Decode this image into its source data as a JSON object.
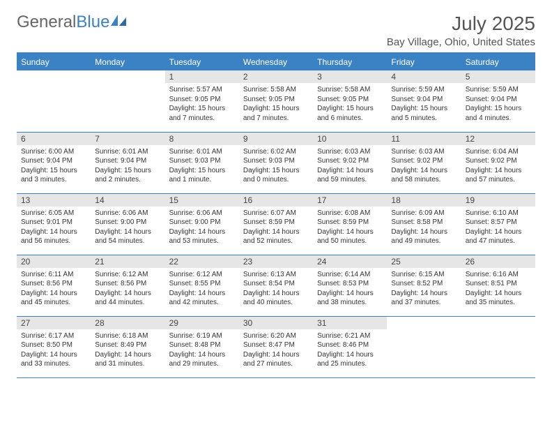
{
  "logo": {
    "text1": "General",
    "text2": "Blue"
  },
  "title": "July 2025",
  "location": "Bay Village, Ohio, United States",
  "colors": {
    "accent": "#3b82c4",
    "daynum_bg": "#e6e6e6",
    "text": "#333333",
    "header_text": "#555555"
  },
  "weekdays": [
    "Sunday",
    "Monday",
    "Tuesday",
    "Wednesday",
    "Thursday",
    "Friday",
    "Saturday"
  ],
  "weeks": [
    [
      {
        "empty": true
      },
      {
        "empty": true
      },
      {
        "day": "1",
        "sunrise": "Sunrise: 5:57 AM",
        "sunset": "Sunset: 9:05 PM",
        "daylight": "Daylight: 15 hours and 7 minutes."
      },
      {
        "day": "2",
        "sunrise": "Sunrise: 5:58 AM",
        "sunset": "Sunset: 9:05 PM",
        "daylight": "Daylight: 15 hours and 7 minutes."
      },
      {
        "day": "3",
        "sunrise": "Sunrise: 5:58 AM",
        "sunset": "Sunset: 9:05 PM",
        "daylight": "Daylight: 15 hours and 6 minutes."
      },
      {
        "day": "4",
        "sunrise": "Sunrise: 5:59 AM",
        "sunset": "Sunset: 9:04 PM",
        "daylight": "Daylight: 15 hours and 5 minutes."
      },
      {
        "day": "5",
        "sunrise": "Sunrise: 5:59 AM",
        "sunset": "Sunset: 9:04 PM",
        "daylight": "Daylight: 15 hours and 4 minutes."
      }
    ],
    [
      {
        "day": "6",
        "sunrise": "Sunrise: 6:00 AM",
        "sunset": "Sunset: 9:04 PM",
        "daylight": "Daylight: 15 hours and 3 minutes."
      },
      {
        "day": "7",
        "sunrise": "Sunrise: 6:01 AM",
        "sunset": "Sunset: 9:04 PM",
        "daylight": "Daylight: 15 hours and 2 minutes."
      },
      {
        "day": "8",
        "sunrise": "Sunrise: 6:01 AM",
        "sunset": "Sunset: 9:03 PM",
        "daylight": "Daylight: 15 hours and 1 minute."
      },
      {
        "day": "9",
        "sunrise": "Sunrise: 6:02 AM",
        "sunset": "Sunset: 9:03 PM",
        "daylight": "Daylight: 15 hours and 0 minutes."
      },
      {
        "day": "10",
        "sunrise": "Sunrise: 6:03 AM",
        "sunset": "Sunset: 9:02 PM",
        "daylight": "Daylight: 14 hours and 59 minutes."
      },
      {
        "day": "11",
        "sunrise": "Sunrise: 6:03 AM",
        "sunset": "Sunset: 9:02 PM",
        "daylight": "Daylight: 14 hours and 58 minutes."
      },
      {
        "day": "12",
        "sunrise": "Sunrise: 6:04 AM",
        "sunset": "Sunset: 9:02 PM",
        "daylight": "Daylight: 14 hours and 57 minutes."
      }
    ],
    [
      {
        "day": "13",
        "sunrise": "Sunrise: 6:05 AM",
        "sunset": "Sunset: 9:01 PM",
        "daylight": "Daylight: 14 hours and 56 minutes."
      },
      {
        "day": "14",
        "sunrise": "Sunrise: 6:06 AM",
        "sunset": "Sunset: 9:00 PM",
        "daylight": "Daylight: 14 hours and 54 minutes."
      },
      {
        "day": "15",
        "sunrise": "Sunrise: 6:06 AM",
        "sunset": "Sunset: 9:00 PM",
        "daylight": "Daylight: 14 hours and 53 minutes."
      },
      {
        "day": "16",
        "sunrise": "Sunrise: 6:07 AM",
        "sunset": "Sunset: 8:59 PM",
        "daylight": "Daylight: 14 hours and 52 minutes."
      },
      {
        "day": "17",
        "sunrise": "Sunrise: 6:08 AM",
        "sunset": "Sunset: 8:59 PM",
        "daylight": "Daylight: 14 hours and 50 minutes."
      },
      {
        "day": "18",
        "sunrise": "Sunrise: 6:09 AM",
        "sunset": "Sunset: 8:58 PM",
        "daylight": "Daylight: 14 hours and 49 minutes."
      },
      {
        "day": "19",
        "sunrise": "Sunrise: 6:10 AM",
        "sunset": "Sunset: 8:57 PM",
        "daylight": "Daylight: 14 hours and 47 minutes."
      }
    ],
    [
      {
        "day": "20",
        "sunrise": "Sunrise: 6:11 AM",
        "sunset": "Sunset: 8:56 PM",
        "daylight": "Daylight: 14 hours and 45 minutes."
      },
      {
        "day": "21",
        "sunrise": "Sunrise: 6:12 AM",
        "sunset": "Sunset: 8:56 PM",
        "daylight": "Daylight: 14 hours and 44 minutes."
      },
      {
        "day": "22",
        "sunrise": "Sunrise: 6:12 AM",
        "sunset": "Sunset: 8:55 PM",
        "daylight": "Daylight: 14 hours and 42 minutes."
      },
      {
        "day": "23",
        "sunrise": "Sunrise: 6:13 AM",
        "sunset": "Sunset: 8:54 PM",
        "daylight": "Daylight: 14 hours and 40 minutes."
      },
      {
        "day": "24",
        "sunrise": "Sunrise: 6:14 AM",
        "sunset": "Sunset: 8:53 PM",
        "daylight": "Daylight: 14 hours and 38 minutes."
      },
      {
        "day": "25",
        "sunrise": "Sunrise: 6:15 AM",
        "sunset": "Sunset: 8:52 PM",
        "daylight": "Daylight: 14 hours and 37 minutes."
      },
      {
        "day": "26",
        "sunrise": "Sunrise: 6:16 AM",
        "sunset": "Sunset: 8:51 PM",
        "daylight": "Daylight: 14 hours and 35 minutes."
      }
    ],
    [
      {
        "day": "27",
        "sunrise": "Sunrise: 6:17 AM",
        "sunset": "Sunset: 8:50 PM",
        "daylight": "Daylight: 14 hours and 33 minutes."
      },
      {
        "day": "28",
        "sunrise": "Sunrise: 6:18 AM",
        "sunset": "Sunset: 8:49 PM",
        "daylight": "Daylight: 14 hours and 31 minutes."
      },
      {
        "day": "29",
        "sunrise": "Sunrise: 6:19 AM",
        "sunset": "Sunset: 8:48 PM",
        "daylight": "Daylight: 14 hours and 29 minutes."
      },
      {
        "day": "30",
        "sunrise": "Sunrise: 6:20 AM",
        "sunset": "Sunset: 8:47 PM",
        "daylight": "Daylight: 14 hours and 27 minutes."
      },
      {
        "day": "31",
        "sunrise": "Sunrise: 6:21 AM",
        "sunset": "Sunset: 8:46 PM",
        "daylight": "Daylight: 14 hours and 25 minutes."
      },
      {
        "empty": true
      },
      {
        "empty": true
      }
    ]
  ]
}
